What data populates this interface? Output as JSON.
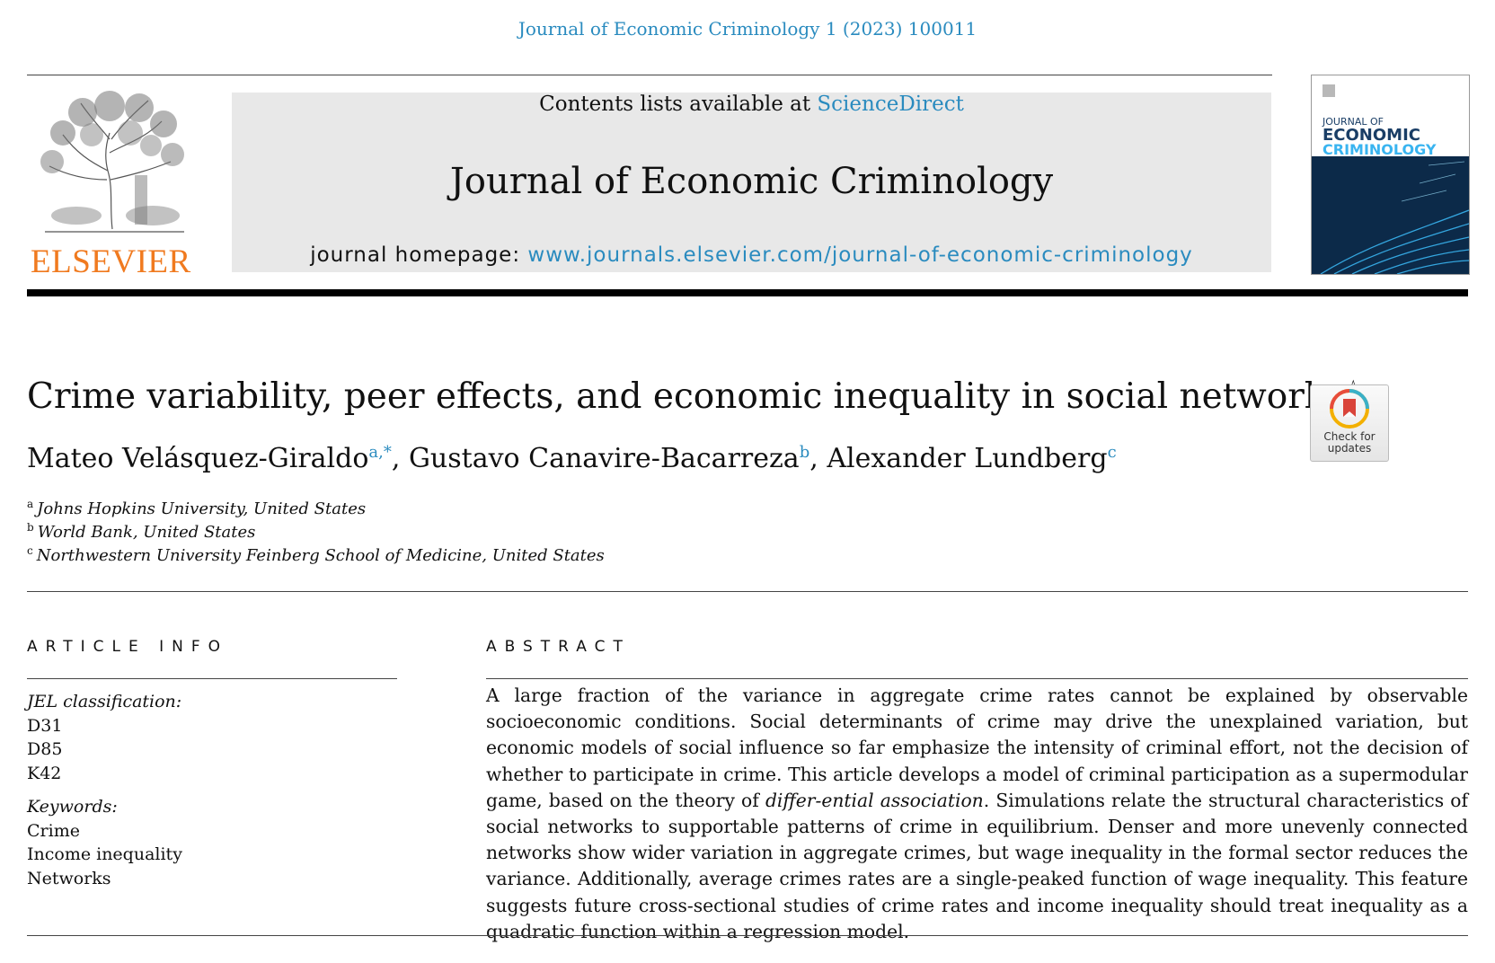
{
  "header": {
    "citation": "Journal of Economic Criminology 1 (2023) 100011",
    "publisher_logo_text": "ELSEVIER",
    "contents_prefix": "Contents lists available at ",
    "contents_link": "ScienceDirect",
    "journal_name": "Journal of Economic Criminology",
    "homepage_prefix": "journal homepage: ",
    "homepage_url": "www.journals.elsevier.com/journal-of-economic-criminology",
    "cover": {
      "line1": "JOURNAL OF",
      "line2": "ECONOMIC",
      "line3": "CRIMINOLOGY"
    }
  },
  "article": {
    "title": "Crime variability, peer effects, and economic inequality in social networks",
    "title_mark": "☆",
    "badge_label_1": "Check for",
    "badge_label_2": "updates",
    "authors": [
      {
        "name": "Mateo Velásquez-Giraldo",
        "sup": "a,*",
        "sep": ", "
      },
      {
        "name": "Gustavo Canavire-Bacarreza",
        "sup": "b",
        "sep": ", "
      },
      {
        "name": "Alexander Lundberg",
        "sup": "c",
        "sep": ""
      }
    ],
    "affiliations": [
      {
        "mark": "a",
        "text": "Johns Hopkins University, United States"
      },
      {
        "mark": "b",
        "text": "World Bank, United States"
      },
      {
        "mark": "c",
        "text": "Northwestern University Feinberg School of Medicine, United States"
      }
    ]
  },
  "article_info": {
    "heading": "ARTICLE INFO",
    "jel_label": "JEL classification:",
    "jel_codes": [
      "D31",
      "D85",
      "K42"
    ],
    "keywords_label": "Keywords:",
    "keywords": [
      "Crime",
      "Income inequality",
      "Networks"
    ]
  },
  "abstract": {
    "heading": "ABSTRACT",
    "part1": "A large fraction of the variance in aggregate crime rates cannot be explained by observable socioeconomic conditions. Social determinants of crime may drive the unexplained variation, but economic models of social influence so far emphasize the intensity of criminal effort, not the decision of whether to participate in crime. This article develops a model of criminal participation as a supermodular game, based on the theory of ",
    "part1_italic": "differ-ential association",
    "part2": ". Simulations relate the structural characteristics of social networks to supportable patterns of crime in equilibrium. Denser and more unevenly connected networks show wider variation in aggregate crimes, but wage inequality in the formal sector reduces the variance. Additionally, average crimes rates are a single-peaked function of wage inequality. This feature suggests future cross-sectional studies of crime rates and income inequality should treat inequality as a quadratic function within a regression model."
  },
  "colors": {
    "link": "#2a8bbf",
    "elsevier_orange": "#f07a1f",
    "banner_bg": "#e8e8e8",
    "cover_bg": "#0b1a2c"
  },
  "icons": {
    "elsevier_tree": "elsevier-tree-logo",
    "crossmark": "check-for-updates-icon"
  }
}
